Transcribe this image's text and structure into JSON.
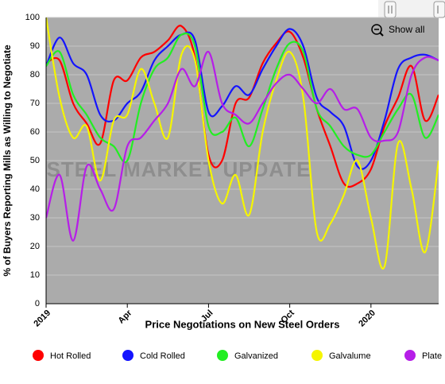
{
  "chart_data": {
    "type": "line",
    "y_label": "% of Buyers Reporting Mills as Willing to Negotiate",
    "x_label": "Price Negotiations on New Steel Orders",
    "watermark": "STEEL MARKET UPDATE",
    "button": "Show all",
    "x": [
      0,
      0.5,
      1,
      1.5,
      2,
      2.5,
      3,
      3.5,
      4,
      4.5,
      5,
      5.5,
      6,
      6.5,
      7,
      7.5,
      8,
      8.5,
      9,
      9.5,
      10,
      10.5,
      11,
      11.5,
      12,
      12.5,
      13,
      13.5,
      14,
      14.5
    ],
    "xlim": [
      0,
      14.5
    ],
    "xticks": [
      {
        "value": 0,
        "label": "2019"
      },
      {
        "value": 3,
        "label": "Apr"
      },
      {
        "value": 6,
        "label": "Jul"
      },
      {
        "value": 9,
        "label": "Oct"
      },
      {
        "value": 12,
        "label": "2020"
      }
    ],
    "ylim": [
      0,
      100
    ],
    "yticks": [
      0,
      10,
      20,
      30,
      40,
      50,
      60,
      70,
      80,
      90,
      100
    ],
    "grid": true,
    "legend": "bottom",
    "series": [
      {
        "name": "Hot Rolled",
        "color": "#ff0000",
        "values": [
          84,
          85,
          70,
          63,
          56,
          78,
          78,
          86,
          88,
          92,
          97,
          86,
          52,
          50,
          70,
          72,
          84,
          91,
          95,
          86,
          68,
          55,
          42,
          42,
          47,
          62,
          72,
          83,
          64,
          73
        ]
      },
      {
        "name": "Cold Rolled",
        "color": "#1414ff",
        "values": [
          83,
          93,
          84,
          80,
          66,
          64,
          70,
          74,
          85,
          90,
          94,
          92,
          67,
          69,
          76,
          73,
          82,
          90,
          96,
          90,
          72,
          67,
          62,
          48,
          50,
          64,
          82,
          86,
          87,
          85
        ]
      },
      {
        "name": "Galvanized",
        "color": "#22ee22",
        "values": [
          83,
          88,
          73,
          66,
          58,
          55,
          50,
          70,
          82,
          86,
          94,
          90,
          62,
          60,
          65,
          55,
          68,
          82,
          91,
          88,
          68,
          62,
          55,
          52,
          52,
          60,
          68,
          73,
          58,
          66
        ]
      },
      {
        "name": "Galvalume",
        "color": "#f5f500",
        "values": [
          100,
          72,
          58,
          62,
          43,
          64,
          66,
          82,
          70,
          58,
          87,
          85,
          50,
          35,
          45,
          31,
          60,
          78,
          88,
          72,
          25,
          28,
          38,
          50,
          30,
          13,
          56,
          40,
          18,
          50
        ]
      },
      {
        "name": "Plate",
        "color": "#b61ee8",
        "values": [
          30,
          45,
          22,
          48,
          40,
          33,
          55,
          58,
          64,
          70,
          82,
          76,
          88,
          70,
          66,
          63,
          70,
          77,
          80,
          75,
          70,
          75,
          68,
          68,
          58,
          57,
          60,
          80,
          86,
          85
        ]
      }
    ]
  }
}
